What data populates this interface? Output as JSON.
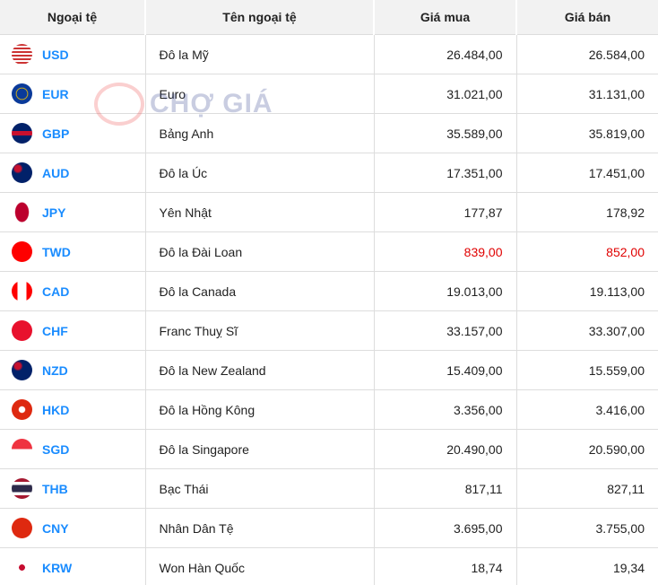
{
  "headers": [
    "Ngoại tệ",
    "Tên ngoại tệ",
    "Giá mua",
    "Giá bán"
  ],
  "watermark": "CHỢ GIÁ",
  "colors": {
    "code": "#1a8cff",
    "highlight": "#e00000"
  },
  "rows": [
    {
      "code": "USD",
      "name": "Đô la Mỹ",
      "buy": "26.484,00",
      "sell": "26.584,00",
      "flag": "us-flag"
    },
    {
      "code": "EUR",
      "name": "Euro",
      "buy": "31.021,00",
      "sell": "31.131,00",
      "flag": "eu-flag"
    },
    {
      "code": "GBP",
      "name": "Bảng Anh",
      "buy": "35.589,00",
      "sell": "35.819,00",
      "flag": "uk-flag"
    },
    {
      "code": "AUD",
      "name": "Đô la Úc",
      "buy": "17.351,00",
      "sell": "17.451,00",
      "flag": "au-flag"
    },
    {
      "code": "JPY",
      "name": "Yên Nhật",
      "buy": "177,87",
      "sell": "178,92",
      "flag": "jp-flag"
    },
    {
      "code": "TWD",
      "name": "Đô la Đài Loan",
      "buy": "839,00",
      "sell": "852,00",
      "flag": "tw-flag",
      "highlight": true
    },
    {
      "code": "CAD",
      "name": "Đô la Canada",
      "buy": "19.013,00",
      "sell": "19.113,00",
      "flag": "ca-flag"
    },
    {
      "code": "CHF",
      "name": "Franc Thuỵ Sĩ",
      "buy": "33.157,00",
      "sell": "33.307,00",
      "flag": "ch-flag"
    },
    {
      "code": "NZD",
      "name": "Đô la New Zealand",
      "buy": "15.409,00",
      "sell": "15.559,00",
      "flag": "nz-flag"
    },
    {
      "code": "HKD",
      "name": "Đô la Hồng Kông",
      "buy": "3.356,00",
      "sell": "3.416,00",
      "flag": "hk-flag"
    },
    {
      "code": "SGD",
      "name": "Đô la Singapore",
      "buy": "20.490,00",
      "sell": "20.590,00",
      "flag": "sg-flag"
    },
    {
      "code": "THB",
      "name": "Bạc Thái",
      "buy": "817,11",
      "sell": "827,11",
      "flag": "th-flag"
    },
    {
      "code": "CNY",
      "name": "Nhân Dân Tệ",
      "buy": "3.695,00",
      "sell": "3.755,00",
      "flag": "cn-flag"
    },
    {
      "code": "KRW",
      "name": "Won Hàn Quốc",
      "buy": "18,74",
      "sell": "19,34",
      "flag": "kr-flag"
    }
  ]
}
